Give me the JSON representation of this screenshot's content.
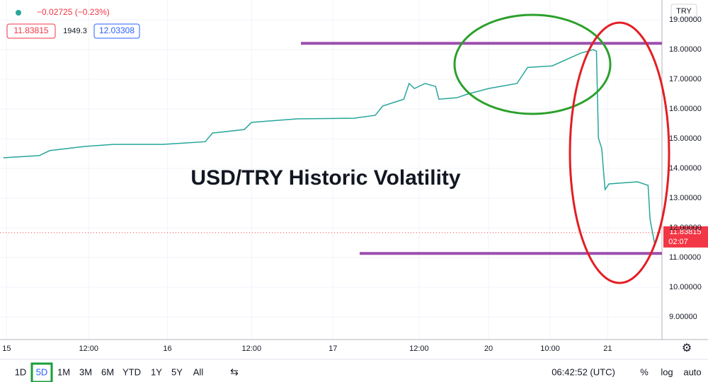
{
  "chart_data": {
    "type": "line",
    "title": "USD/TRY Historic Volatility",
    "header": {
      "change": "−0.02725 (−0.23%)",
      "bid": "11.83815",
      "spread": "1949.3",
      "ask": "12.03308",
      "currency": "TRY"
    },
    "price_label": "11.83815",
    "countdown": "02:07",
    "current_price": 11.83815,
    "x": [
      0.5,
      5.9,
      7.5,
      12.8,
      17.1,
      24.6,
      31,
      32.1,
      36.9,
      38,
      44.9,
      53.5,
      56.7,
      57.8,
      61,
      61.8,
      62.6,
      64.2,
      65.8,
      66.3,
      69,
      70.6,
      73.8,
      78.1,
      79.7,
      83.4,
      87.7,
      89.6,
      90.1,
      90.4,
      90.9,
      91.4,
      92,
      96.3,
      97.9,
      98.2,
      98.9,
      99.5
    ],
    "series": [
      {
        "color": "#26a69a",
        "values": [
          14.36,
          14.43,
          14.6,
          14.74,
          14.81,
          14.81,
          14.9,
          15.19,
          15.31,
          15.55,
          15.67,
          15.69,
          15.79,
          16.1,
          16.33,
          16.86,
          16.69,
          16.86,
          16.76,
          16.33,
          16.38,
          16.5,
          16.69,
          16.86,
          17.4,
          17.45,
          17.88,
          18.0,
          17.95,
          15.02,
          14.67,
          13.29,
          13.48,
          13.55,
          13.43,
          12.29,
          11.45,
          11.81
        ]
      }
    ],
    "levels": [
      18.21,
      11.14
    ],
    "level_color": "#9c4fae",
    "xlim": [
      0,
      100
    ],
    "xticks": [
      {
        "value": 1,
        "label": "15"
      },
      {
        "value": 13.4,
        "label": "12:00"
      },
      {
        "value": 25.3,
        "label": "16"
      },
      {
        "value": 38,
        "label": "12:00"
      },
      {
        "value": 50.3,
        "label": "17"
      },
      {
        "value": 63.3,
        "label": "12:00"
      },
      {
        "value": 73.8,
        "label": "20"
      },
      {
        "value": 83.1,
        "label": "10:00"
      },
      {
        "value": 91.8,
        "label": "21"
      }
    ],
    "ylim": [
      8.24,
      19.67
    ],
    "yticks": [
      {
        "value": 9,
        "label": "9.00000"
      },
      {
        "value": 10,
        "label": "10.00000"
      },
      {
        "value": 11,
        "label": "11.00000"
      },
      {
        "value": 12,
        "label": "12.00000"
      },
      {
        "value": 13,
        "label": "13.00000"
      },
      {
        "value": 14,
        "label": "14.00000"
      },
      {
        "value": 15,
        "label": "15.00000"
      },
      {
        "value": 16,
        "label": "16.00000"
      },
      {
        "value": 17,
        "label": "17.00000"
      },
      {
        "value": 18,
        "label": "18.00000"
      },
      {
        "value": 19,
        "label": "19.00000"
      }
    ],
    "grid": true
  },
  "toolbar": {
    "ranges": [
      "1D",
      "5D",
      "1M",
      "3M",
      "6M",
      "YTD",
      "1Y",
      "5Y",
      "All"
    ],
    "clock": "06:42:52 (UTC)",
    "options": [
      "%",
      "log",
      "auto"
    ]
  }
}
